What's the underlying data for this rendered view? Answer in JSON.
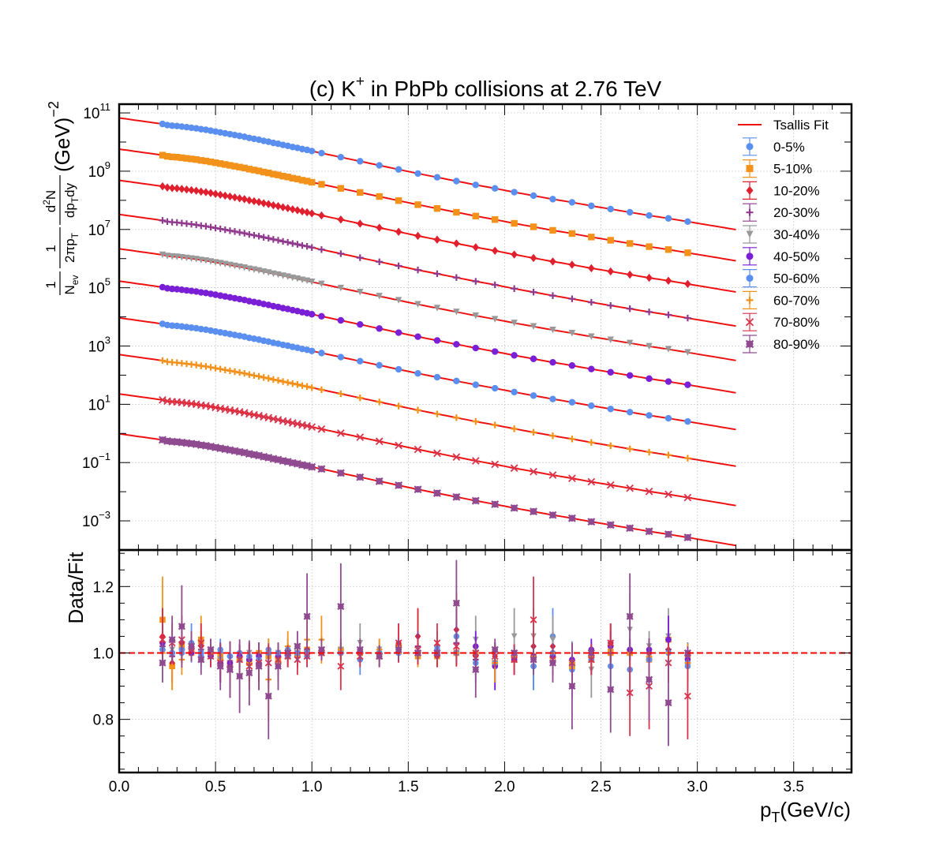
{
  "chart_data": {
    "type": "scatter",
    "title": {
      "main": "(c) K",
      "superscript": "+",
      "rest": " in PbPb collisions at 2.76 TeV"
    },
    "xlabel": {
      "main": "p",
      "subscript": "T",
      "rest": "(GeV/c)"
    },
    "xlim": [
      0.0,
      3.8
    ],
    "xticks": [
      "0.0",
      "0.5",
      "1.0",
      "1.5",
      "2.0",
      "2.5",
      "3.0",
      "3.5"
    ],
    "top_panel": {
      "scale": "log",
      "ylim_log10": [
        -4.0,
        11.3
      ],
      "yticks": [
        {
          "base": "10",
          "exp": "11"
        },
        {
          "base": "10",
          "exp": "9"
        },
        {
          "base": "10",
          "exp": "7"
        },
        {
          "base": "10",
          "exp": "5"
        },
        {
          "base": "10",
          "exp": "3"
        },
        {
          "base": "10",
          "exp": "1"
        },
        {
          "base": "10",
          "exp": "−1"
        },
        {
          "base": "10",
          "exp": "−3"
        }
      ],
      "ylabel": {
        "frac1_num": "1",
        "frac1_den": "N",
        "frac1_den_sub": "ev",
        "frac2_num": "1",
        "frac2_den": "2πp",
        "frac2_den_sub": "T",
        "frac3_num": "d",
        "frac3_num_sup": "2",
        "frac3_num_rest": "N",
        "frac3_den": "dp",
        "frac3_den_sub": "T",
        "frac3_den_rest": "dy",
        "units": "(GeV)",
        "units_sup": "−2"
      }
    },
    "bottom_panel": {
      "ylabel": "Data/Fit",
      "ylim": [
        0.64,
        1.31
      ],
      "yticks": [
        "0.8",
        "1.0",
        "1.2"
      ],
      "reference_line": 1.0
    },
    "fit_label": "Tsallis Fit",
    "fit_color": "#ee1111",
    "fit_x_range": [
      0.0,
      3.2
    ],
    "data_x_range": [
      0.225,
      2.95
    ],
    "x_points": [
      0.225,
      0.25,
      0.275,
      0.3,
      0.325,
      0.35,
      0.375,
      0.4,
      0.425,
      0.45,
      0.475,
      0.5,
      0.525,
      0.55,
      0.575,
      0.6,
      0.625,
      0.65,
      0.675,
      0.7,
      0.725,
      0.75,
      0.775,
      0.8,
      0.825,
      0.85,
      0.875,
      0.9,
      0.925,
      0.95,
      0.975,
      1.0,
      1.05,
      1.15,
      1.25,
      1.35,
      1.45,
      1.55,
      1.65,
      1.75,
      1.85,
      1.95,
      2.05,
      2.15,
      2.25,
      2.35,
      2.45,
      2.55,
      2.65,
      2.75,
      2.85,
      2.95
    ],
    "ratio_x_points": [
      0.225,
      0.275,
      0.325,
      0.375,
      0.425,
      0.475,
      0.525,
      0.575,
      0.625,
      0.675,
      0.725,
      0.775,
      0.825,
      0.875,
      0.925,
      0.975,
      1.05,
      1.15,
      1.25,
      1.35,
      1.45,
      1.55,
      1.65,
      1.75,
      1.85,
      1.95,
      2.05,
      2.15,
      2.25,
      2.35,
      2.45,
      2.55,
      2.65,
      2.75,
      2.85,
      2.95
    ],
    "series": [
      {
        "name": "0-5%",
        "color": "#5a8ff0",
        "marker": "circle",
        "log10_values": [
          10.62,
          10.58,
          10.56,
          10.55,
          10.53,
          10.51,
          10.49,
          10.47,
          10.44,
          10.42,
          10.39,
          10.36,
          10.33,
          10.3,
          10.27,
          10.24,
          10.21,
          10.18,
          10.14,
          10.11,
          10.08,
          10.04,
          10.01,
          9.97,
          9.94,
          9.9,
          9.87,
          9.83,
          9.8,
          9.76,
          9.73,
          9.69,
          9.62,
          9.48,
          9.34,
          9.2,
          9.06,
          8.92,
          8.79,
          8.66,
          8.53,
          8.41,
          8.28,
          8.16,
          8.04,
          7.93,
          7.81,
          7.7,
          7.59,
          7.48,
          7.38,
          7.27
        ],
        "ratios": [
          1.01,
          1.0,
          1.0,
          1.02,
          0.99,
          1.01,
          1.0,
          0.99,
          1.0,
          0.98,
          0.99,
          1.01,
          0.99,
          1.01,
          1.0,
          0.99,
          1.0,
          1.01,
          0.98,
          1.0,
          1.01,
          1.0,
          1.02,
          1.05,
          0.97,
          0.96,
          0.98,
          0.96,
          1.05,
          0.95,
          0.98,
          1.03,
          0.95,
          1.0,
          1.0,
          0.96
        ]
      },
      {
        "name": "5-10%",
        "color": "#f3921b",
        "marker": "square",
        "log10_values": [
          9.55,
          9.51,
          9.49,
          9.48,
          9.46,
          9.44,
          9.42,
          9.4,
          9.37,
          9.35,
          9.32,
          9.29,
          9.26,
          9.23,
          9.2,
          9.17,
          9.14,
          9.11,
          9.07,
          9.04,
          9.01,
          8.97,
          8.94,
          8.9,
          8.87,
          8.83,
          8.8,
          8.76,
          8.73,
          8.69,
          8.66,
          8.62,
          8.55,
          8.41,
          8.27,
          8.13,
          7.99,
          7.85,
          7.72,
          7.59,
          7.46,
          7.34,
          7.21,
          7.09,
          6.97,
          6.86,
          6.74,
          6.63,
          6.52,
          6.41,
          6.31,
          6.2
        ],
        "ratios": [
          1.1,
          0.96,
          1.02,
          1.0,
          1.04,
          1.0,
          0.99,
          0.97,
          0.98,
          0.97,
          1.0,
          0.99,
          0.98,
          0.99,
          1.0,
          1.01,
          1.0,
          1.01,
          1.0,
          0.99,
          1.02,
          0.99,
          0.99,
          1.0,
          1.0,
          0.97,
          0.98,
          0.99,
          0.99,
          0.96,
          0.98,
          1.0,
          1.0,
          0.98,
          1.04,
          0.99
        ]
      },
      {
        "name": "10-20%",
        "color": "#e0202e",
        "marker": "diamond",
        "log10_values": [
          8.48,
          8.44,
          8.42,
          8.41,
          8.39,
          8.37,
          8.35,
          8.33,
          8.3,
          8.28,
          8.25,
          8.22,
          8.19,
          8.16,
          8.13,
          8.1,
          8.07,
          8.04,
          8.0,
          7.97,
          7.94,
          7.9,
          7.87,
          7.83,
          7.8,
          7.76,
          7.73,
          7.69,
          7.66,
          7.62,
          7.59,
          7.55,
          7.48,
          7.34,
          7.2,
          7.06,
          6.92,
          6.78,
          6.65,
          6.52,
          6.39,
          6.27,
          6.14,
          6.02,
          5.9,
          5.79,
          5.67,
          5.56,
          5.45,
          5.34,
          5.24,
          5.13
        ],
        "ratios": [
          1.05,
          0.97,
          1.03,
          1.01,
          1.02,
          1.0,
          0.98,
          0.97,
          0.99,
          0.98,
          0.99,
          1.0,
          1.0,
          0.99,
          1.0,
          1.01,
          1.0,
          1.0,
          1.0,
          1.0,
          1.03,
          1.05,
          0.99,
          1.07,
          0.99,
          0.99,
          1.0,
          1.02,
          1.02,
          0.98,
          0.99,
          1.03,
          1.01,
          1.0,
          1.01,
          0.99
        ]
      },
      {
        "name": "20-30%",
        "color": "#8f3a8f",
        "marker": "plus",
        "log10_values": [
          7.31,
          7.27,
          7.25,
          7.24,
          7.22,
          7.2,
          7.18,
          7.16,
          7.13,
          7.11,
          7.08,
          7.05,
          7.02,
          6.99,
          6.96,
          6.93,
          6.9,
          6.87,
          6.83,
          6.8,
          6.77,
          6.73,
          6.7,
          6.66,
          6.63,
          6.59,
          6.56,
          6.52,
          6.49,
          6.45,
          6.42,
          6.38,
          6.31,
          6.17,
          6.03,
          5.89,
          5.75,
          5.61,
          5.48,
          5.35,
          5.22,
          5.1,
          4.97,
          4.85,
          4.73,
          4.62,
          4.5,
          4.39,
          4.28,
          4.17,
          4.07,
          3.96
        ],
        "ratios": [
          1.02,
          0.99,
          1.01,
          1.0,
          1.01,
          0.99,
          0.97,
          0.96,
          0.99,
          0.98,
          0.97,
          1.0,
          0.99,
          1.0,
          0.99,
          1.01,
          1.0,
          1.0,
          1.0,
          1.0,
          1.0,
          1.02,
          1.0,
          1.03,
          0.98,
          0.97,
          1.0,
          0.99,
          1.0,
          0.97,
          0.99,
          1.0,
          1.01,
          0.98,
          1.01,
          0.97
        ]
      },
      {
        "name": "30-40%",
        "color": "#999999",
        "marker": "triangle",
        "log10_values": [
          6.13,
          6.09,
          6.07,
          6.06,
          6.04,
          6.02,
          6.0,
          5.98,
          5.95,
          5.93,
          5.9,
          5.87,
          5.84,
          5.81,
          5.78,
          5.75,
          5.72,
          5.69,
          5.65,
          5.62,
          5.59,
          5.55,
          5.52,
          5.48,
          5.45,
          5.41,
          5.38,
          5.34,
          5.31,
          5.27,
          5.24,
          5.2,
          5.13,
          4.99,
          4.85,
          4.71,
          4.57,
          4.43,
          4.3,
          4.17,
          4.04,
          3.92,
          3.79,
          3.67,
          3.55,
          3.44,
          3.32,
          3.21,
          3.1,
          2.99,
          2.89,
          2.78
        ],
        "ratios": [
          1.0,
          1.01,
          1.0,
          1.01,
          1.0,
          0.99,
          0.98,
          0.97,
          0.99,
          1.0,
          0.99,
          1.0,
          1.0,
          1.0,
          1.0,
          1.0,
          1.0,
          1.01,
          1.03,
          1.01,
          1.0,
          1.0,
          1.0,
          1.0,
          1.04,
          1.0,
          1.05,
          1.05,
          1.04,
          0.96,
          0.95,
          1.01,
          1.07,
          1.02,
          1.05,
          0.98
        ]
      },
      {
        "name": "40-50%",
        "color": "#7a1fd6",
        "marker": "circle",
        "log10_values": [
          5.02,
          4.98,
          4.96,
          4.95,
          4.93,
          4.91,
          4.89,
          4.87,
          4.84,
          4.82,
          4.79,
          4.76,
          4.73,
          4.7,
          4.67,
          4.64,
          4.61,
          4.58,
          4.54,
          4.51,
          4.48,
          4.44,
          4.41,
          4.37,
          4.34,
          4.3,
          4.27,
          4.23,
          4.2,
          4.16,
          4.13,
          4.09,
          4.02,
          3.88,
          3.74,
          3.6,
          3.46,
          3.32,
          3.19,
          3.06,
          2.93,
          2.81,
          2.68,
          2.56,
          2.44,
          2.33,
          2.21,
          2.1,
          1.99,
          1.88,
          1.78,
          1.67
        ],
        "ratios": [
          1.03,
          1.0,
          1.01,
          1.0,
          1.0,
          0.99,
          0.97,
          0.97,
          0.99,
          0.98,
          0.99,
          1.0,
          0.99,
          1.0,
          0.99,
          1.0,
          1.0,
          1.0,
          1.0,
          1.0,
          1.0,
          1.0,
          1.0,
          1.0,
          1.02,
          0.96,
          0.98,
          0.99,
          0.99,
          0.98,
          1.01,
          1.02,
          1.01,
          1.01,
          1.04,
          0.98
        ]
      },
      {
        "name": "50-60%",
        "color": "#5a8ff0",
        "marker": "circle",
        "log10_values": [
          3.76,
          3.72,
          3.7,
          3.69,
          3.67,
          3.65,
          3.63,
          3.61,
          3.58,
          3.56,
          3.53,
          3.5,
          3.47,
          3.44,
          3.41,
          3.38,
          3.35,
          3.32,
          3.28,
          3.25,
          3.22,
          3.18,
          3.15,
          3.11,
          3.08,
          3.04,
          3.01,
          2.97,
          2.94,
          2.9,
          2.87,
          2.83,
          2.76,
          2.62,
          2.48,
          2.34,
          2.2,
          2.06,
          1.93,
          1.8,
          1.67,
          1.55,
          1.42,
          1.3,
          1.18,
          1.07,
          0.95,
          0.84,
          0.73,
          0.62,
          0.52,
          0.41
        ],
        "ratios": [
          1.01,
          1.0,
          1.01,
          1.03,
          1.0,
          1.0,
          1.01,
          0.99,
          0.98,
          0.99,
          0.98,
          1.0,
          1.0,
          0.99,
          1.0,
          1.0,
          1.0,
          1.0,
          1.0,
          1.0,
          1.0,
          1.0,
          1.01,
          1.0,
          1.0,
          0.97,
          0.99,
          0.96,
          1.0,
          0.97,
          0.98,
          0.96,
          0.95,
          0.98,
          1.0,
          0.97
        ]
      },
      {
        "name": "60-70%",
        "color": "#f3921b",
        "marker": "plus",
        "log10_values": [
          2.5,
          2.46,
          2.44,
          2.43,
          2.41,
          2.39,
          2.37,
          2.35,
          2.32,
          2.3,
          2.27,
          2.24,
          2.21,
          2.18,
          2.15,
          2.12,
          2.09,
          2.06,
          2.02,
          1.99,
          1.96,
          1.92,
          1.89,
          1.85,
          1.82,
          1.78,
          1.75,
          1.71,
          1.68,
          1.64,
          1.61,
          1.57,
          1.5,
          1.36,
          1.22,
          1.08,
          0.94,
          0.8,
          0.67,
          0.54,
          0.41,
          0.29,
          0.16,
          0.04,
          -0.08,
          -0.19,
          -0.31,
          -0.42,
          -0.53,
          -0.64,
          -0.74,
          -0.85
        ],
        "ratios": [
          1.0,
          0.96,
          0.98,
          1.02,
          1.03,
          1.0,
          0.98,
          0.95,
          0.98,
          0.97,
          0.96,
          0.92,
          0.97,
          1.02,
          0.99,
          1.04,
          1.04,
          1.01,
          1.0,
          1.01,
          1.0,
          1.0,
          1.0,
          1.0,
          1.0,
          0.97,
          0.99,
          0.99,
          1.0,
          0.97,
          0.99,
          1.01,
          1.0,
          0.99,
          1.0,
          0.97
        ]
      },
      {
        "name": "70-80%",
        "color": "#d8334a",
        "marker": "cross",
        "log10_values": [
          1.15,
          1.11,
          1.09,
          1.08,
          1.06,
          1.04,
          1.02,
          1.0,
          0.97,
          0.95,
          0.92,
          0.89,
          0.86,
          0.83,
          0.8,
          0.77,
          0.74,
          0.71,
          0.67,
          0.64,
          0.61,
          0.57,
          0.54,
          0.5,
          0.47,
          0.43,
          0.4,
          0.36,
          0.33,
          0.29,
          0.26,
          0.22,
          0.15,
          0.01,
          -0.13,
          -0.27,
          -0.41,
          -0.55,
          -0.68,
          -0.81,
          -0.94,
          -1.06,
          -1.19,
          -1.31,
          -1.43,
          -1.54,
          -1.66,
          -1.77,
          -1.88,
          -1.99,
          -2.09,
          -2.2
        ],
        "ratios": [
          1.04,
          1.03,
          1.04,
          1.01,
          1.03,
          0.99,
          0.97,
          0.95,
          0.98,
          0.96,
          0.97,
          0.97,
          0.98,
          0.99,
          0.98,
          0.99,
          1.0,
          0.96,
          0.99,
          0.99,
          1.03,
          1.01,
          1.03,
          1.02,
          1.0,
          0.99,
          0.98,
          1.1,
          0.98,
          0.97,
          0.98,
          1.03,
          0.88,
          0.9,
          0.97,
          0.87
        ]
      },
      {
        "name": "80-90%",
        "color": "#8f4a90",
        "marker": "xcircle",
        "log10_values": [
          -0.22,
          -0.26,
          -0.28,
          -0.29,
          -0.31,
          -0.33,
          -0.35,
          -0.37,
          -0.4,
          -0.42,
          -0.45,
          -0.48,
          -0.51,
          -0.54,
          -0.57,
          -0.6,
          -0.63,
          -0.66,
          -0.7,
          -0.73,
          -0.76,
          -0.8,
          -0.83,
          -0.87,
          -0.9,
          -0.94,
          -0.97,
          -1.01,
          -1.04,
          -1.08,
          -1.11,
          -1.15,
          -1.22,
          -1.36,
          -1.5,
          -1.64,
          -1.78,
          -1.92,
          -2.05,
          -2.18,
          -2.31,
          -2.43,
          -2.56,
          -2.68,
          -2.8,
          -2.91,
          -3.03,
          -3.14,
          -3.25,
          -3.36,
          -3.46,
          -3.57
        ],
        "ratios": [
          0.97,
          1.04,
          1.08,
          1.02,
          0.98,
          1.01,
          0.96,
          0.95,
          0.93,
          0.94,
          0.96,
          0.87,
          0.96,
          1.0,
          1.02,
          1.11,
          1.01,
          1.14,
          1.01,
          0.99,
          1.01,
          1.0,
          1.0,
          1.15,
          0.95,
          1.01,
          1.0,
          0.98,
          0.97,
          0.9,
          1.0,
          0.89,
          1.11,
          0.92,
          0.85,
          1.0
        ]
      }
    ]
  }
}
